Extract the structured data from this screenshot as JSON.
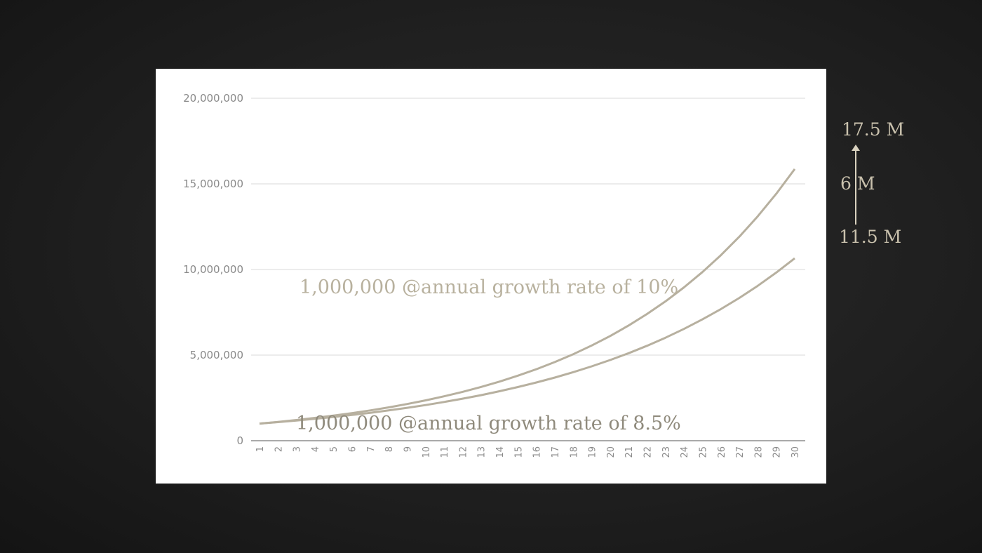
{
  "chart_data": {
    "type": "line",
    "x": [
      1,
      2,
      3,
      4,
      5,
      6,
      7,
      8,
      9,
      10,
      11,
      12,
      13,
      14,
      15,
      16,
      17,
      18,
      19,
      20,
      21,
      22,
      23,
      24,
      25,
      26,
      27,
      28,
      29,
      30
    ],
    "ylim": [
      0,
      20000000
    ],
    "y_ticks": [
      "0",
      "5,000,000",
      "10,000,000",
      "15,000,000",
      "20,000,000"
    ],
    "y_tick_values": [
      0,
      5000000,
      10000000,
      15000000,
      20000000
    ],
    "grid": true,
    "series": [
      {
        "values": [
          1000000,
          1100000,
          1210000,
          1331000,
          1464100,
          1610510,
          1771561,
          1948717,
          2143589,
          2357948,
          2593742,
          2853117,
          3138428,
          3452271,
          3797498,
          4177248,
          4594973,
          5054470,
          5559917,
          6115909,
          6727500,
          7400250,
          8140275,
          8954302,
          9849733,
          10834706,
          11918177,
          13109994,
          14420994,
          15863093
        ]
      },
      {
        "values": [
          1000000,
          1085000,
          1177225,
          1277289,
          1385859,
          1503657,
          1631468,
          1770143,
          1920605,
          2083856,
          2260984,
          2453167,
          2661686,
          2887929,
          3133403,
          3399742,
          3688720,
          4002261,
          4342453,
          4711561,
          5112044,
          5546568,
          6018027,
          6529559,
          7084572,
          7686761,
          8340136,
          9049048,
          9818217,
          10652765
        ]
      }
    ],
    "annotations": {
      "line_10": "1,000,000 @annual growth rate of 10%",
      "line_85": "1,000,000 @annual growth rate of 8.5%"
    }
  },
  "side_notes": {
    "top": "17.5 M",
    "middle": "6 M",
    "bottom": "11.5 M"
  },
  "colors": {
    "line": "#b7b09f",
    "grid": "#d8d8d8",
    "axis": "#777777"
  }
}
